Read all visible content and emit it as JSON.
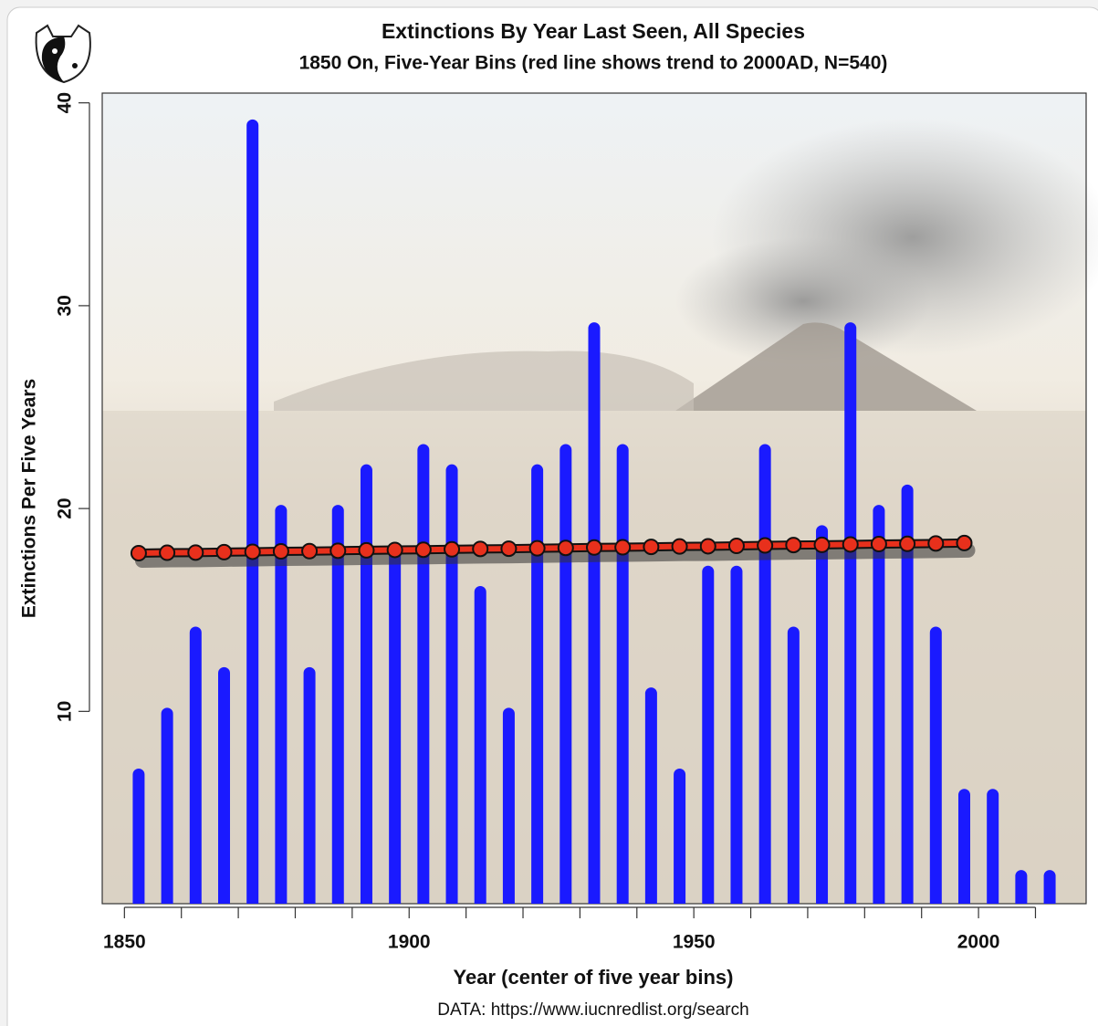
{
  "chart_data": {
    "type": "bar",
    "title": "Extinctions By Year Last Seen, All Species",
    "subtitle": "1850 On, Five-Year Bins (red line shows trend to 2000AD, N=540)",
    "xlabel": "Year (center of five year bins)",
    "ylabel": "Extinctions Per Five Years",
    "caption": "DATA: https://www.iucnredlist.org/search",
    "x": [
      1852.5,
      1857.5,
      1862.5,
      1867.5,
      1872.5,
      1877.5,
      1882.5,
      1887.5,
      1892.5,
      1897.5,
      1902.5,
      1907.5,
      1912.5,
      1917.5,
      1922.5,
      1927.5,
      1932.5,
      1937.5,
      1942.5,
      1947.5,
      1952.5,
      1957.5,
      1962.5,
      1967.5,
      1972.5,
      1977.5,
      1982.5,
      1987.5,
      1992.5,
      1997.5,
      2002.5,
      2007.5,
      2012.5
    ],
    "values": [
      7,
      10,
      14,
      12,
      39,
      20,
      12,
      20,
      22,
      18,
      23,
      22,
      16,
      10,
      22,
      23,
      29,
      23,
      11,
      7,
      17,
      17,
      23,
      14,
      19,
      29,
      20,
      21,
      14,
      6,
      6,
      2,
      2
    ],
    "color": "#1a1aff",
    "trend": {
      "color": "#e8301c",
      "x": [
        1852.5,
        1857.5,
        1862.5,
        1867.5,
        1872.5,
        1877.5,
        1882.5,
        1887.5,
        1892.5,
        1897.5,
        1902.5,
        1907.5,
        1912.5,
        1917.5,
        1922.5,
        1927.5,
        1932.5,
        1937.5,
        1942.5,
        1947.5,
        1952.5,
        1957.5,
        1962.5,
        1967.5,
        1972.5,
        1977.5,
        1982.5,
        1987.5,
        1992.5,
        1997.5
      ],
      "values": [
        17.8,
        17.82,
        17.83,
        17.85,
        17.87,
        17.89,
        17.9,
        17.92,
        17.94,
        17.96,
        17.97,
        17.99,
        18.01,
        18.02,
        18.04,
        18.06,
        18.08,
        18.09,
        18.11,
        18.13,
        18.14,
        18.16,
        18.18,
        18.2,
        18.21,
        18.23,
        18.25,
        18.26,
        18.28,
        18.3
      ]
    },
    "xlim": [
      1846.1,
      2018.9
    ],
    "ylim": [
      0.52,
      40.48
    ],
    "xticks": [
      1850,
      1900,
      1950,
      2000
    ],
    "xminorticks": [
      1860,
      1870,
      1880,
      1890,
      1910,
      1920,
      1930,
      1940,
      1960,
      1970,
      1980,
      1990,
      2010
    ],
    "yticks": [
      10,
      20,
      30,
      40
    ]
  }
}
